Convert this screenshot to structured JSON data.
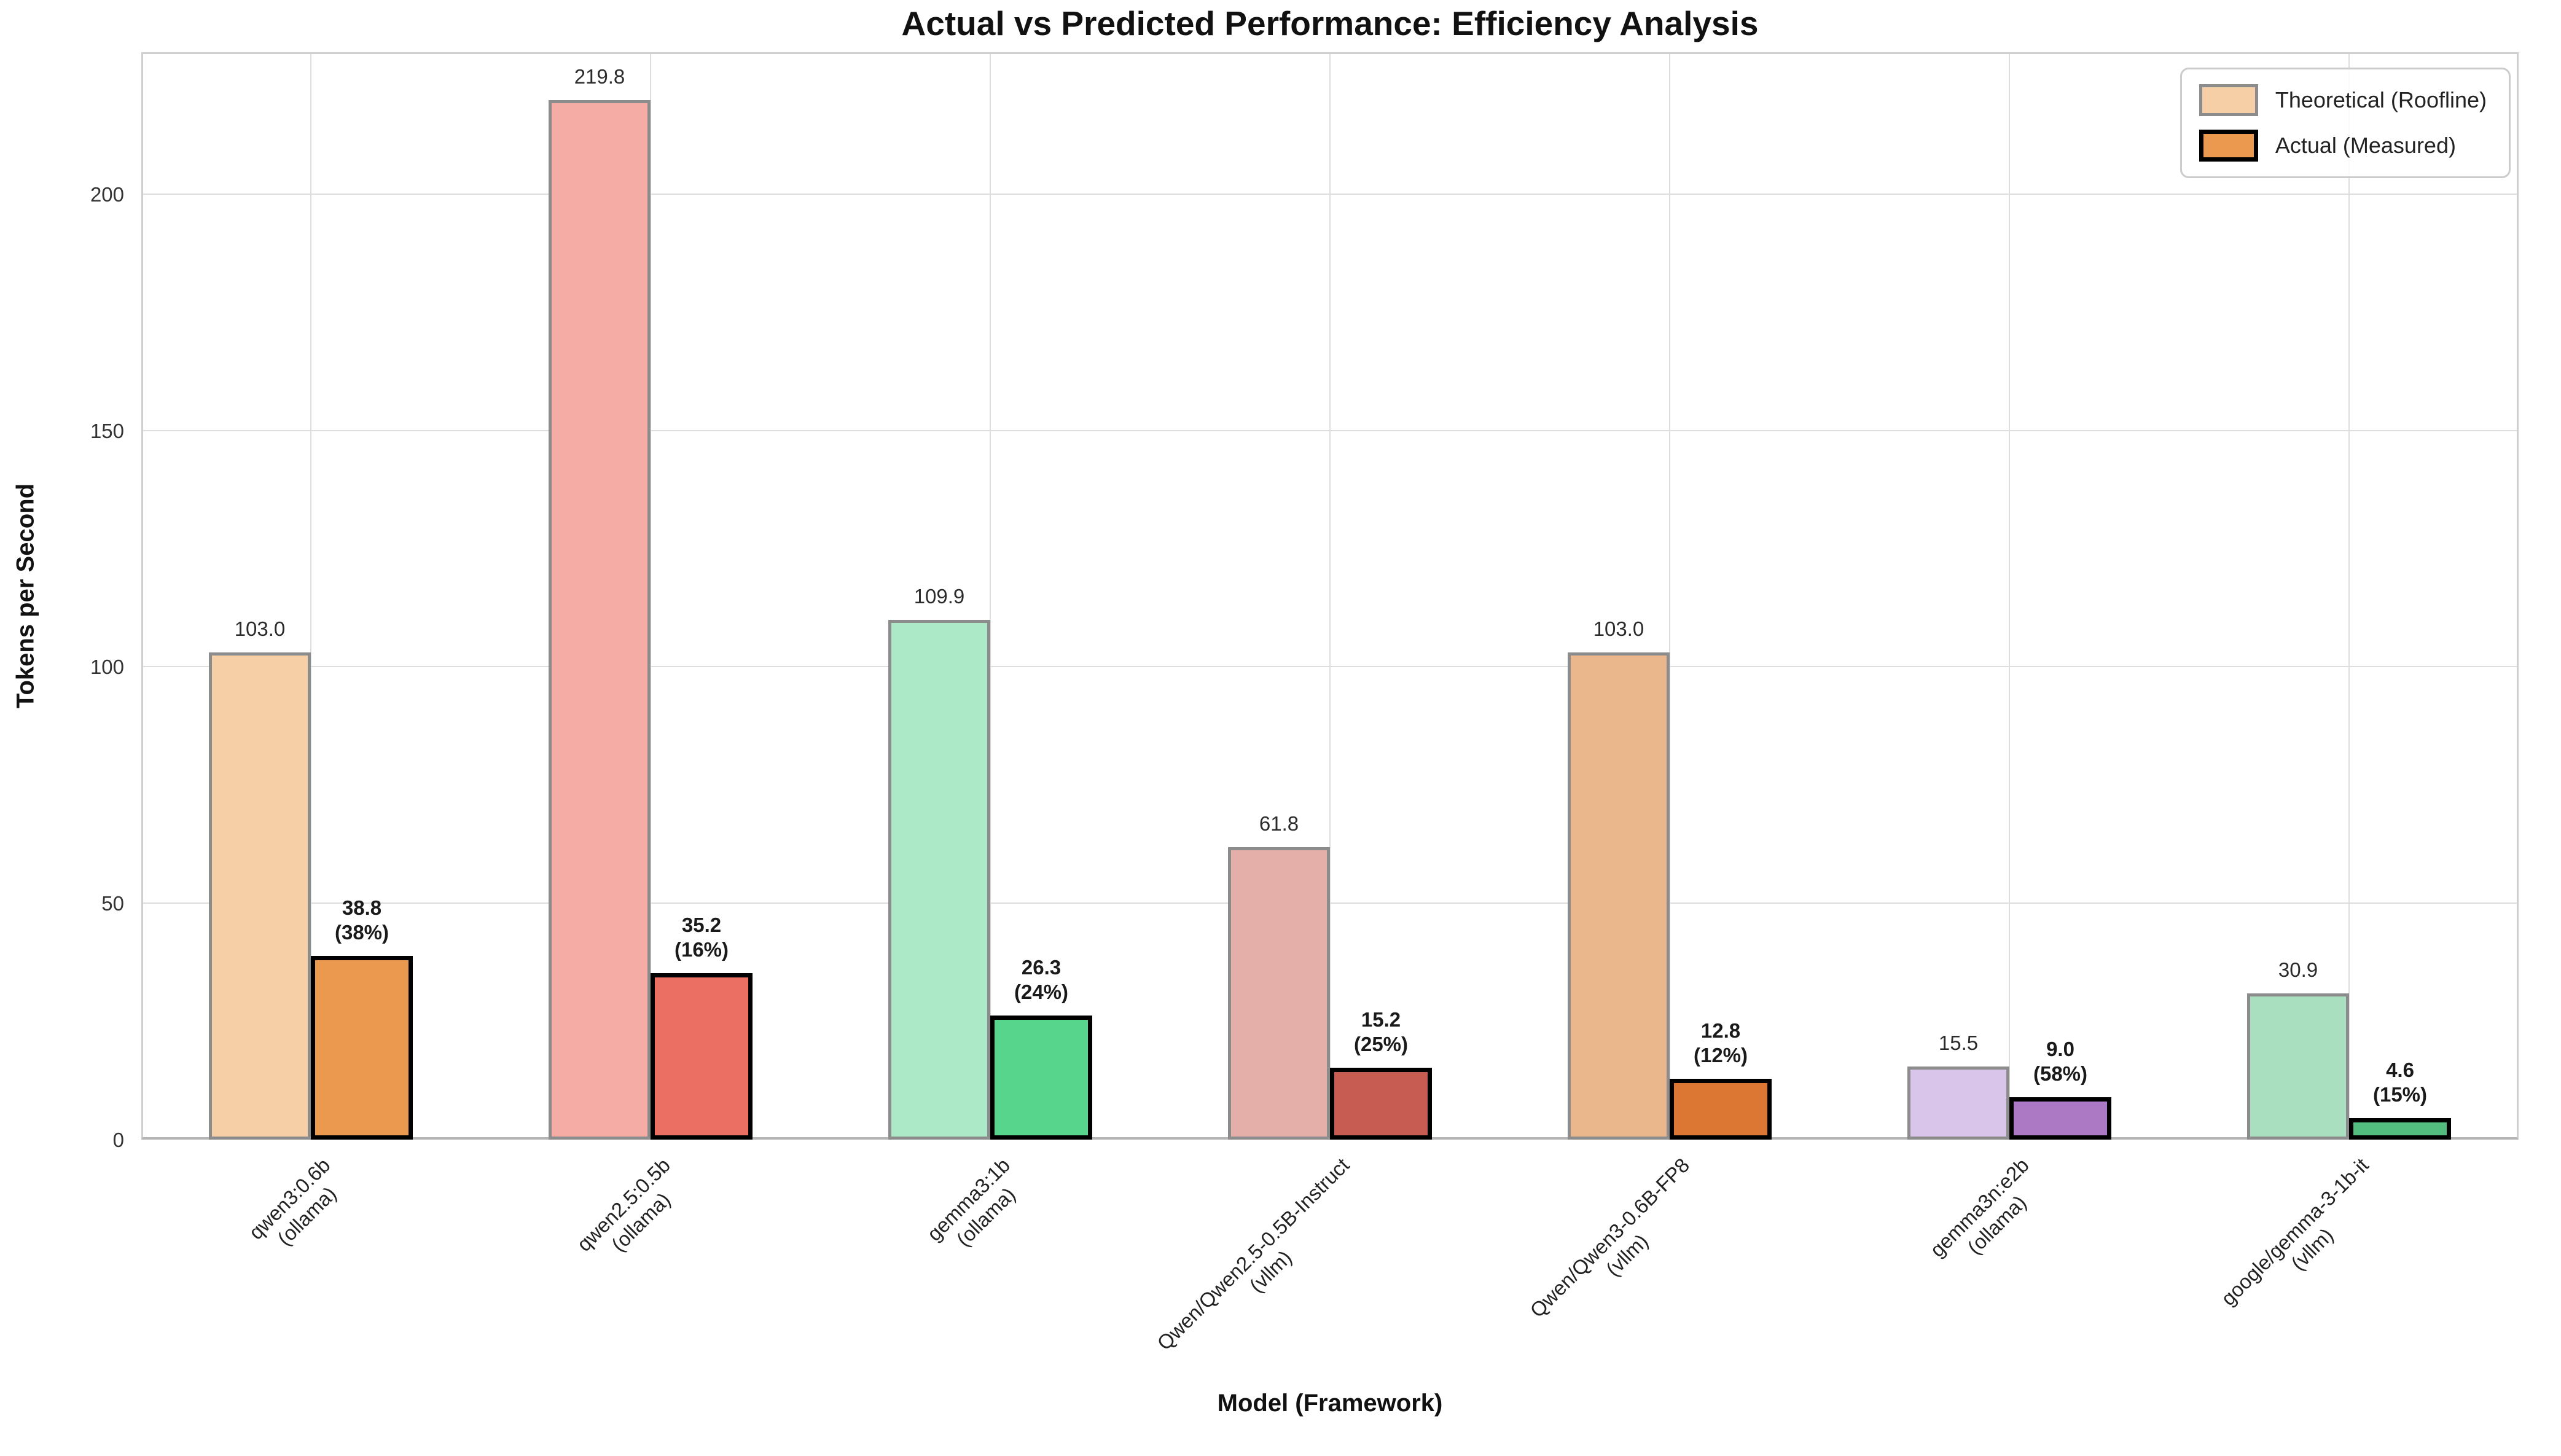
{
  "chart_data": {
    "type": "bar",
    "title": "Actual vs Predicted Performance: Efficiency Analysis",
    "xlabel": "Model (Framework)",
    "ylabel": "Tokens per Second",
    "ylim": [
      0,
      230
    ],
    "yticks": [
      0,
      50,
      100,
      150,
      200
    ],
    "grid": true,
    "legend_position": "upper right",
    "categories": [
      {
        "model": "qwen3:0.6b",
        "framework": "(ollama)"
      },
      {
        "model": "qwen2.5:0.5b",
        "framework": "(ollama)"
      },
      {
        "model": "gemma3:1b",
        "framework": "(ollama)"
      },
      {
        "model": "Qwen/Qwen2.5-0.5B-Instruct",
        "framework": "(vllm)"
      },
      {
        "model": "Qwen/Qwen3-0.6B-FP8",
        "framework": "(vllm)"
      },
      {
        "model": "gemma3n:e2b",
        "framework": "(ollama)"
      },
      {
        "model": "google/gemma-3-1b-it",
        "framework": "(vllm)"
      }
    ],
    "series": [
      {
        "name": "Theoretical (Roofline)",
        "values": [
          103.0,
          219.8,
          109.9,
          61.8,
          103.0,
          15.5,
          30.9
        ],
        "labels": [
          "103.0",
          "219.8",
          "109.9",
          "61.8",
          "103.0",
          "15.5",
          "30.9"
        ]
      },
      {
        "name": "Actual (Measured)",
        "values": [
          38.8,
          35.2,
          26.3,
          15.2,
          12.8,
          9.0,
          4.6
        ],
        "labels": [
          "38.8",
          "35.2",
          "26.3",
          "15.2",
          "12.8",
          "9.0",
          "4.6"
        ],
        "pct_labels": [
          "(38%)",
          "(16%)",
          "(24%)",
          "(25%)",
          "(12%)",
          "(58%)",
          "(15%)"
        ]
      }
    ],
    "colors": {
      "theoretical": [
        "#f6cfa6",
        "#f4aca5",
        "#ace9c6",
        "#e4afa9",
        "#eab68b",
        "#d9c5e9",
        "#a9dfbe"
      ],
      "actual": [
        "#ec9950",
        "#eb6f63",
        "#57d58d",
        "#c75c52",
        "#dc7733",
        "#ac7ac5",
        "#52bd7f"
      ],
      "theoretical_edge": "#8c8c8c",
      "actual_edge": "#000000",
      "grid": "#dddddd"
    }
  }
}
